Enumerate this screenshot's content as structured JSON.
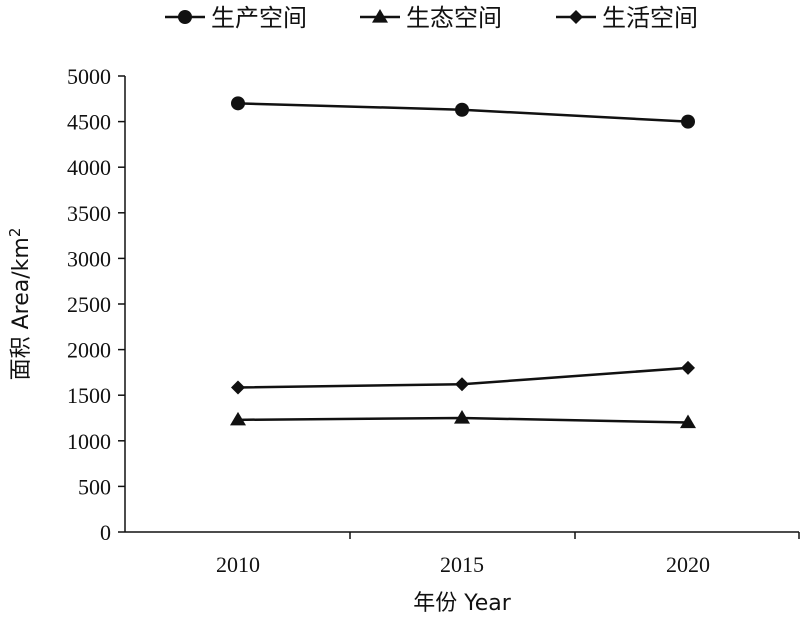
{
  "chart_data": {
    "type": "line",
    "x": [
      "2010",
      "2015",
      "2020"
    ],
    "series": [
      {
        "name": "生产空间",
        "marker": "circle",
        "values": [
          4700,
          4630,
          4500
        ]
      },
      {
        "name": "生态空间",
        "marker": "triangle",
        "values": [
          1230,
          1250,
          1200
        ]
      },
      {
        "name": "生活空间",
        "marker": "diamond",
        "values": [
          1585,
          1620,
          1800
        ]
      }
    ],
    "xlabel": "年份 Year",
    "ylabel": "面积 Area/km",
    "ylabel_superscript": "2",
    "ylim": [
      0,
      5000
    ],
    "yticks": [
      0,
      500,
      1000,
      1500,
      2000,
      2500,
      3000,
      3500,
      4000,
      4500,
      5000
    ],
    "grid": false,
    "legend_position": "top",
    "line_color": "#111111"
  }
}
